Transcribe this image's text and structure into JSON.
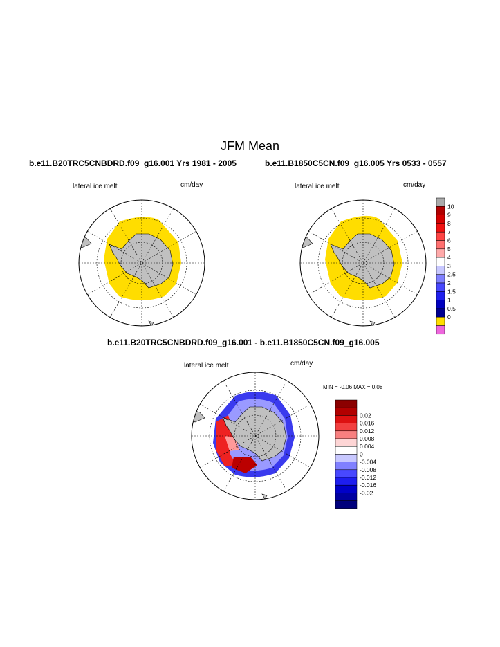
{
  "figure": {
    "title": "JFM Mean",
    "panel_left": {
      "subtitle": "b.e11.B20TRC5CNBDRD.f09_g16.001  Yrs 1981 - 2005",
      "left_label": "lateral ice melt",
      "right_label": "cm/day"
    },
    "panel_right": {
      "subtitle": "b.e11.B1850C5CN.f09_g16.005  Yrs 0533 - 0557",
      "left_label": "lateral ice melt",
      "right_label": "cm/day"
    },
    "panel_diff": {
      "subtitle": "b.e11.B20TRC5CNBDRD.f09_g16.001 - b.e11.B1850C5CN.f09_g16.005",
      "left_label": "lateral ice melt",
      "right_label": "cm/day",
      "min_max_label": "MIN =   -0.06 MAX =    0.08"
    },
    "colorbar_top": {
      "colors": [
        "#aaaaaa",
        "#b10000",
        "#d40000",
        "#f01010",
        "#ff4444",
        "#ff7070",
        "#ffaaaa",
        "#ffffff",
        "#c8c8ff",
        "#8080ff",
        "#4848ff",
        "#2020ee",
        "#0000c0",
        "#000090",
        "#ffdd00",
        "#ee66dd"
      ],
      "labels": [
        "10",
        "9",
        "8",
        "7",
        "6",
        "5",
        "4",
        "3",
        "2.5",
        "2",
        "1.5",
        "1",
        "0.5",
        "0"
      ]
    },
    "colorbar_diff": {
      "colors": [
        "#8b0000",
        "#b20000",
        "#dd1111",
        "#f24040",
        "#f88080",
        "#fdd5d5",
        "#ffffff",
        "#c8c8ff",
        "#8080ff",
        "#4848ff",
        "#1e1ef0",
        "#0000c8",
        "#0000a0",
        "#00007c"
      ],
      "labels": [
        "0.02",
        "0.016",
        "0.012",
        "0.008",
        "0.004",
        "0",
        "-0.004",
        "-0.008",
        "-0.012",
        "-0.016",
        "-0.02"
      ]
    },
    "colors": {
      "land": "#c0c0c0",
      "melt_fill": "#ffdd00"
    }
  }
}
